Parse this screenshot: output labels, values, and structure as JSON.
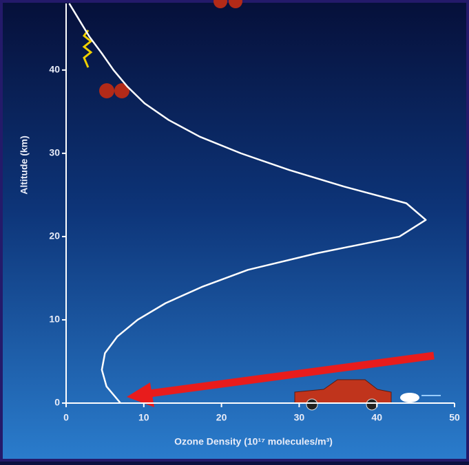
{
  "chart_data": {
    "type": "line",
    "x_label": "Ozone Density (10¹⁷ molecules/m³)",
    "y_label": "Altitude (km)",
    "x": [
      7.0,
      5.2,
      4.6,
      5.0,
      6.6,
      9.2,
      12.8,
      17.6,
      23.4,
      32.3,
      42.9,
      46.3,
      43.8,
      35.8,
      28.7,
      22.5,
      17.2,
      13.2,
      10.1,
      7.9,
      6.1,
      4.6,
      3.0,
      1.7,
      0.4
    ],
    "series": [
      {
        "color": "#ffffff",
        "values": [
          0,
          2,
          4,
          6,
          8,
          10,
          12,
          14,
          16,
          18,
          20,
          22,
          24,
          26,
          28,
          30,
          32,
          34,
          36,
          38,
          40,
          42,
          44,
          46,
          48
        ]
      }
    ],
    "xlim": [
      0,
      50
    ],
    "xticks": [
      0,
      10,
      20,
      30,
      40,
      50
    ],
    "ylim": [
      0,
      48
    ],
    "yticks": [
      0,
      10,
      20,
      30,
      40
    ]
  }
}
